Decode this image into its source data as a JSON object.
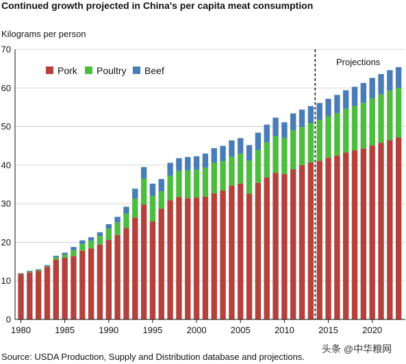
{
  "chart_data": {
    "type": "bar",
    "stacked": true,
    "title": "Continued growth projected in China's per capita meat consumption",
    "ylabel": "Kilograms per person",
    "xlabel": "",
    "source": "Source: USDA Production, Supply and Distribution database and projections.",
    "ylim": [
      0,
      70
    ],
    "yticks": [
      0,
      10,
      20,
      30,
      40,
      50,
      60,
      70
    ],
    "xticks": [
      1980,
      1985,
      1990,
      1995,
      2000,
      2005,
      2010,
      2015,
      2020
    ],
    "grid": true,
    "legend_position": "top-left",
    "annotation": {
      "label": "Projections",
      "after_year": 2013
    },
    "colors": {
      "Pork": "#b5413d",
      "Poultry": "#4dbd3f",
      "Beef": "#4a7db8"
    },
    "x": [
      1980,
      1981,
      1982,
      1983,
      1984,
      1985,
      1986,
      1987,
      1988,
      1989,
      1990,
      1991,
      1992,
      1993,
      1994,
      1995,
      1996,
      1997,
      1998,
      1999,
      2000,
      2001,
      2002,
      2003,
      2004,
      2005,
      2006,
      2007,
      2008,
      2009,
      2010,
      2011,
      2012,
      2013,
      2014,
      2015,
      2016,
      2017,
      2018,
      2019,
      2020,
      2021,
      2022,
      2023
    ],
    "series": [
      {
        "name": "Pork",
        "values": [
          11.8,
          12.2,
          12.6,
          13.6,
          15.5,
          16.0,
          16.4,
          17.8,
          18.4,
          19.4,
          20.6,
          21.9,
          23.7,
          26.4,
          29.8,
          25.4,
          28.7,
          30.9,
          31.7,
          31.4,
          31.6,
          31.8,
          32.7,
          33.4,
          34.7,
          35.2,
          32.6,
          35.4,
          36.8,
          38.0,
          37.7,
          38.9,
          40.0,
          40.7,
          41.1,
          41.9,
          42.5,
          43.3,
          43.8,
          44.3,
          45.1,
          45.8,
          46.5,
          47.2
        ]
      },
      {
        "name": "Poultry",
        "values": [
          0.1,
          0.2,
          0.2,
          0.2,
          0.6,
          0.8,
          1.5,
          1.8,
          2.0,
          2.2,
          2.9,
          3.3,
          3.7,
          4.9,
          6.7,
          6.6,
          4.5,
          6.4,
          6.8,
          7.3,
          7.2,
          7.5,
          7.9,
          7.6,
          7.5,
          7.8,
          8.6,
          8.5,
          9.1,
          9.5,
          9.3,
          10.1,
          9.9,
          10.2,
          10.6,
          10.7,
          11.0,
          11.3,
          11.5,
          11.8,
          12.2,
          12.5,
          12.8,
          12.8
        ]
      },
      {
        "name": "Beef",
        "values": [
          0.1,
          0.2,
          0.2,
          0.3,
          0.4,
          0.5,
          0.9,
          0.9,
          0.9,
          1.0,
          1.2,
          1.4,
          1.8,
          2.6,
          3.0,
          3.2,
          3.2,
          3.3,
          3.3,
          3.4,
          3.5,
          3.7,
          3.8,
          4.0,
          4.2,
          4.0,
          4.0,
          4.5,
          4.6,
          4.8,
          4.1,
          4.4,
          4.5,
          4.4,
          4.4,
          4.6,
          4.7,
          4.8,
          5.0,
          5.2,
          5.3,
          5.3,
          5.3,
          5.4
        ]
      }
    ]
  },
  "watermark": "头条 @中华粮网"
}
